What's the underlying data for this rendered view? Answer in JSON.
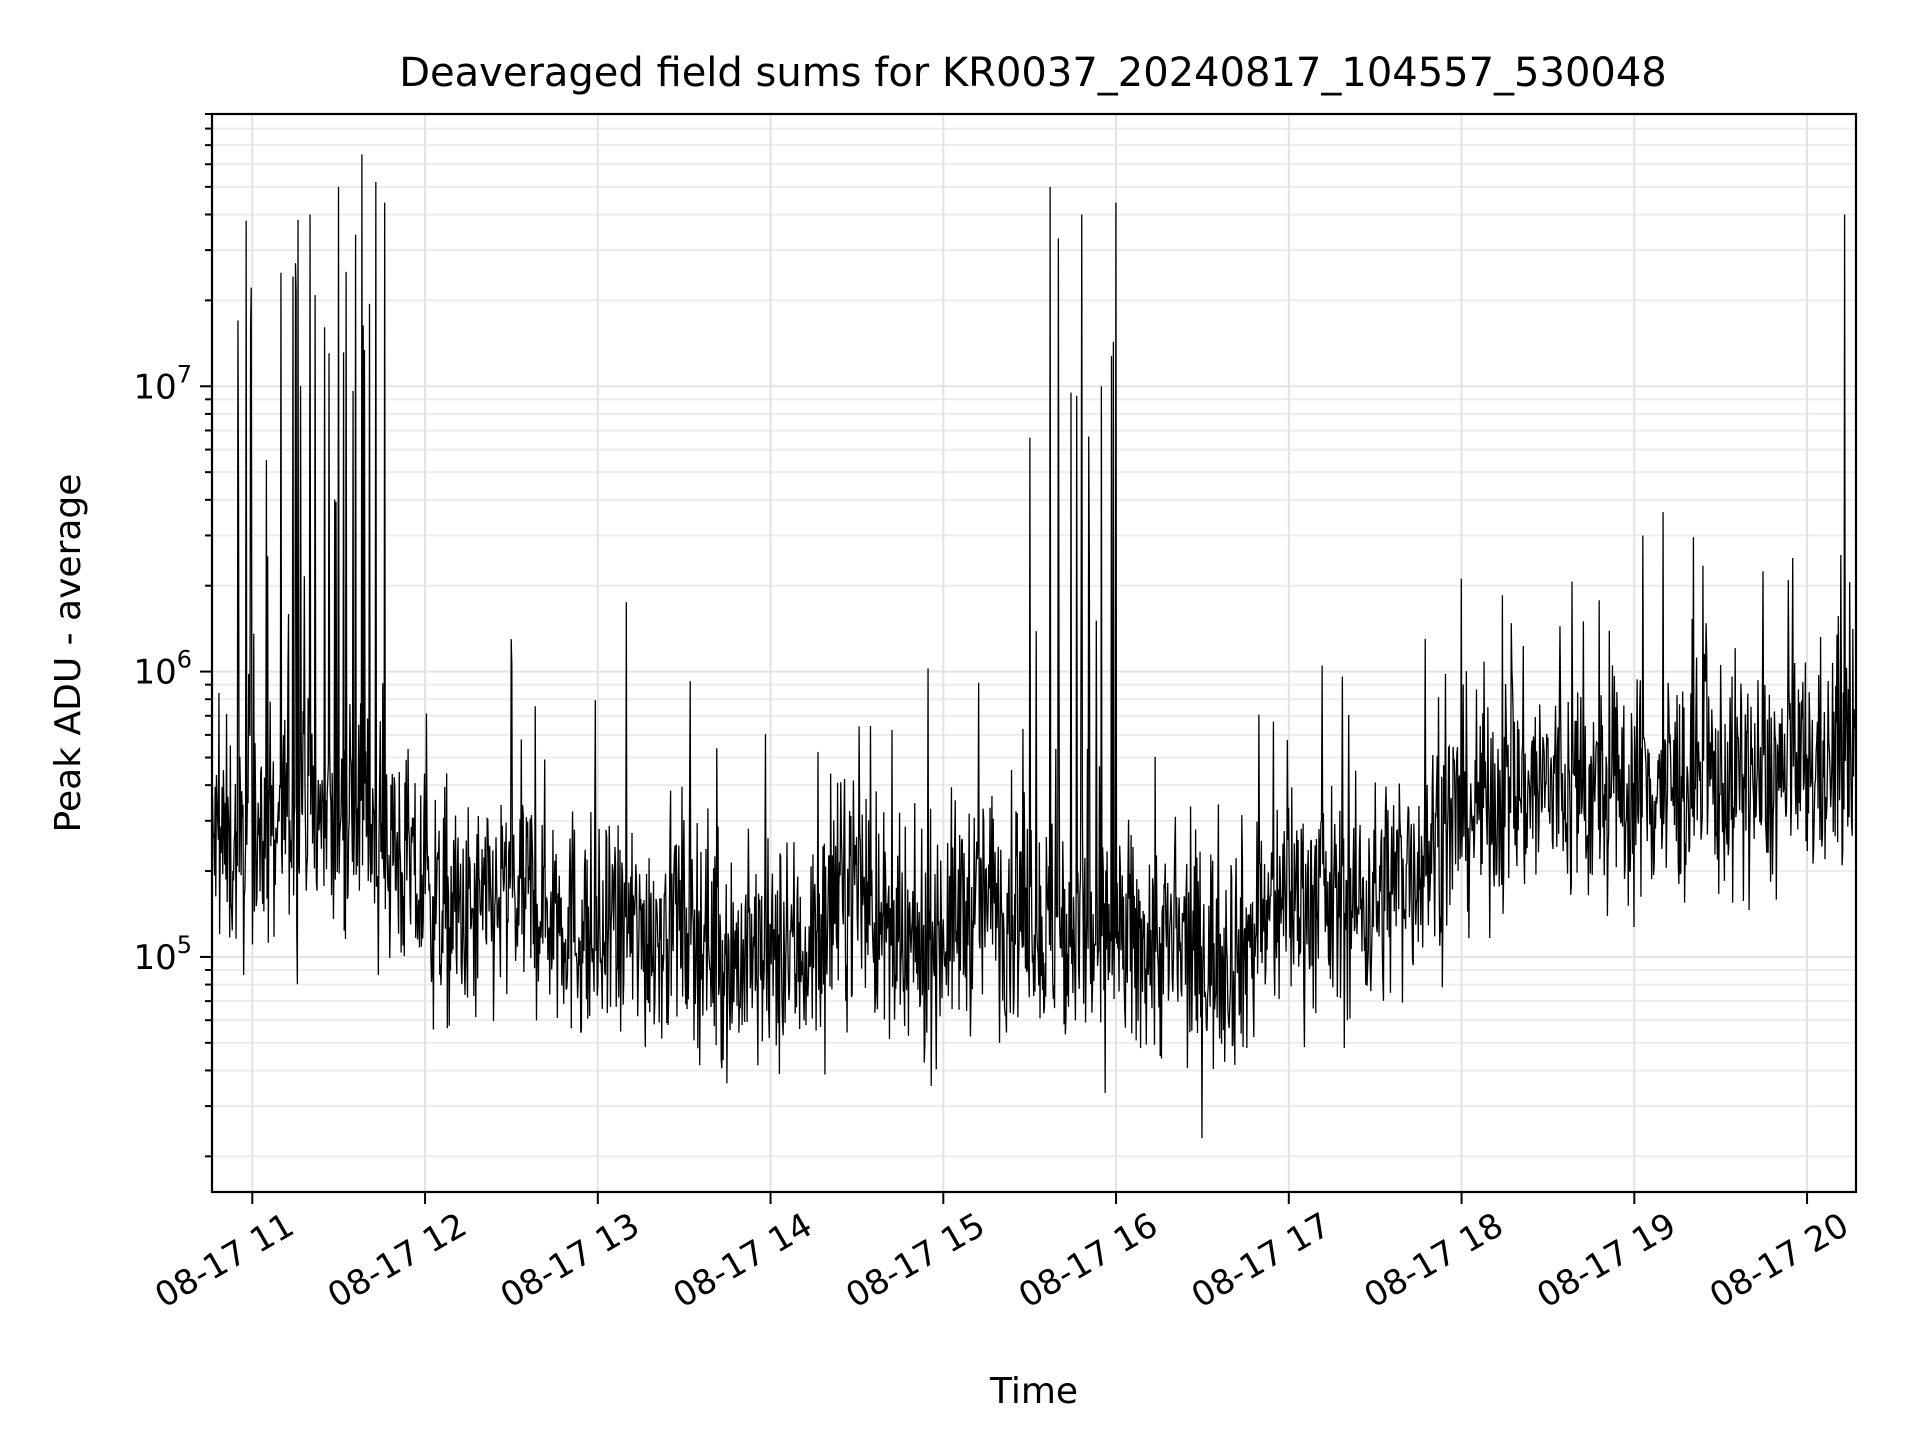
{
  "chart_data": {
    "type": "line",
    "title": "Deaveraged field sums for KR0037_20240817_104557_530048",
    "xlabel": "Time",
    "ylabel": "Peak ADU - average",
    "yscale": "log",
    "grid": true,
    "grid_minor": true,
    "legend": "none",
    "line_color": "#000000",
    "xlim": [
      "08-17 10:46",
      "08-17 20:17"
    ],
    "ylim": [
      15000,
      90000000
    ],
    "x_ticks": [
      "08-17 11",
      "08-17 12",
      "08-17 13",
      "08-17 14",
      "08-17 15",
      "08-17 16",
      "08-17 17",
      "08-17 18",
      "08-17 19",
      "08-17 20"
    ],
    "y_ticks": [
      {
        "base": "10",
        "exp": "5",
        "value": 100000
      },
      {
        "base": "10",
        "exp": "6",
        "value": 1000000
      },
      {
        "base": "10",
        "exp": "7",
        "value": 10000000
      }
    ],
    "series": [
      {
        "x": [
          "08-17 10:46",
          "08-17 11:00",
          "08-17 11:15",
          "08-17 11:30",
          "08-17 11:45",
          "08-17 12:00",
          "08-17 12:15",
          "08-17 12:30",
          "08-17 12:45",
          "08-17 13:00",
          "08-17 13:15",
          "08-17 13:30",
          "08-17 13:45",
          "08-17 14:00",
          "08-17 14:15",
          "08-17 14:30",
          "08-17 14:45",
          "08-17 15:00",
          "08-17 15:15",
          "08-17 15:30",
          "08-17 15:45",
          "08-17 16:00",
          "08-17 16:15",
          "08-17 16:30",
          "08-17 16:45",
          "08-17 17:00",
          "08-17 17:15",
          "08-17 17:30",
          "08-17 17:45",
          "08-17 18:00",
          "08-17 18:15",
          "08-17 18:30",
          "08-17 18:45",
          "08-17 19:00",
          "08-17 19:15",
          "08-17 19:30",
          "08-17 19:45",
          "08-17 20:00",
          "08-17 20:15"
        ],
        "y": [
          250000,
          240000,
          350000,
          300000,
          280000,
          160000,
          130000,
          170000,
          150000,
          110000,
          120000,
          140000,
          100000,
          95000,
          110000,
          200000,
          90000,
          130000,
          160000,
          140000,
          120000,
          110000,
          110000,
          100000,
          110000,
          170000,
          150000,
          160000,
          220000,
          320000,
          380000,
          400000,
          370000,
          380000,
          400000,
          420000,
          410000,
          450000,
          500000
        ],
        "peaks": [
          {
            "x": "08-17 10:55",
            "y": 17000000
          },
          {
            "x": "08-17 11:10",
            "y": 25000000
          },
          {
            "x": "08-17 11:15",
            "y": 27000000
          },
          {
            "x": "08-17 11:20",
            "y": 40000000
          },
          {
            "x": "08-17 11:30",
            "y": 50000000
          },
          {
            "x": "08-17 11:38",
            "y": 65000000
          },
          {
            "x": "08-17 11:43",
            "y": 52000000
          },
          {
            "x": "08-17 11:46",
            "y": 44000000
          },
          {
            "x": "08-17 12:30",
            "y": 1300000
          },
          {
            "x": "08-17 13:10",
            "y": 1750000
          },
          {
            "x": "08-17 15:30",
            "y": 6600000
          },
          {
            "x": "08-17 15:37",
            "y": 50000000
          },
          {
            "x": "08-17 15:40",
            "y": 33000000
          },
          {
            "x": "08-17 15:48",
            "y": 40000000
          },
          {
            "x": "08-17 15:55",
            "y": 10000000
          },
          {
            "x": "08-17 16:00",
            "y": 44000000
          },
          {
            "x": "08-17 19:03",
            "y": 3000000
          },
          {
            "x": "08-17 19:55",
            "y": 2500000
          },
          {
            "x": "08-17 20:13",
            "y": 40000000
          }
        ]
      }
    ]
  }
}
